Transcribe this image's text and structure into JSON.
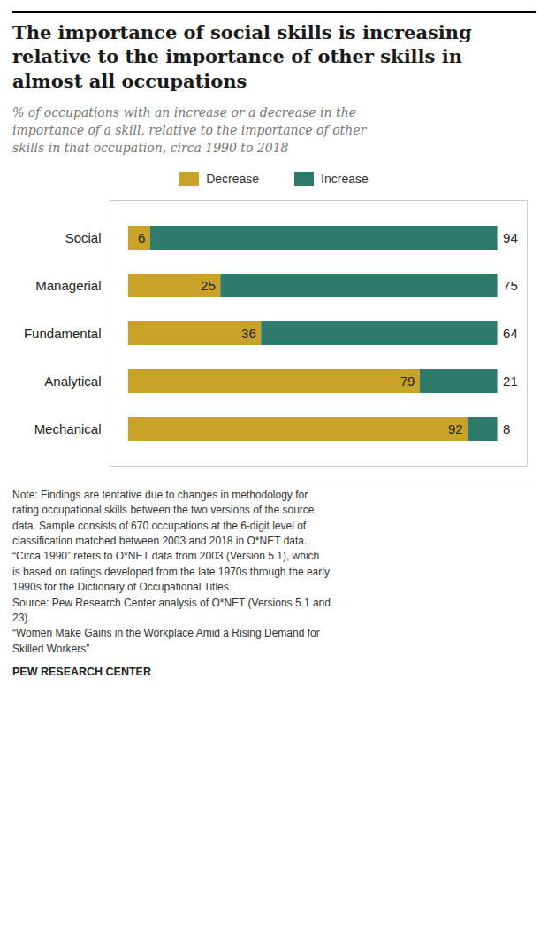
{
  "chart_data": {
    "type": "bar",
    "orientation": "horizontal",
    "stacked": true,
    "title": "The importance of social skills is increasing relative to the importance of other skills in almost all occupations",
    "subtitle": "% of occupations with an increase or a decrease in the\nimportance of a skill, relative to the importance of other\nskills in that occupation, circa 1990 to 2018",
    "categories": [
      "Social",
      "Managerial",
      "Fundamental",
      "Analytical",
      "Mechanical"
    ],
    "series": [
      {
        "name": "Decrease",
        "color": "#C9A227",
        "values": [
          6,
          25,
          36,
          79,
          92
        ]
      },
      {
        "name": "Increase",
        "color": "#2E7B6B",
        "values": [
          94,
          75,
          64,
          21,
          8
        ]
      }
    ],
    "xlim": [
      -5,
      108
    ],
    "tick_labels": "y",
    "data_labels": true,
    "legend": "top",
    "grid": false,
    "annotations": [
      "Note: Findings are tentative due to changes in methodology for\nrating occupational skills between the two versions of the source\ndata. Sample consists of 670 occupations at the 6-digit level of\nclassification matched between 2003 and 2018 in O*NET data.\n“Circa 1990” refers to O*NET data from 2003 (Version 5.1), which\nis based on ratings developed from the late 1970s through the early\n1990s for the Dictionary of Occupational Titles.\nSource: Pew Research Center analysis of O*NET (Versions 5.1 and\n23).\n“Women Make Gains in the Workplace Amid a Rising Demand for\nSkilled Workers”",
      "PEW RESEARCH CENTER"
    ]
  }
}
